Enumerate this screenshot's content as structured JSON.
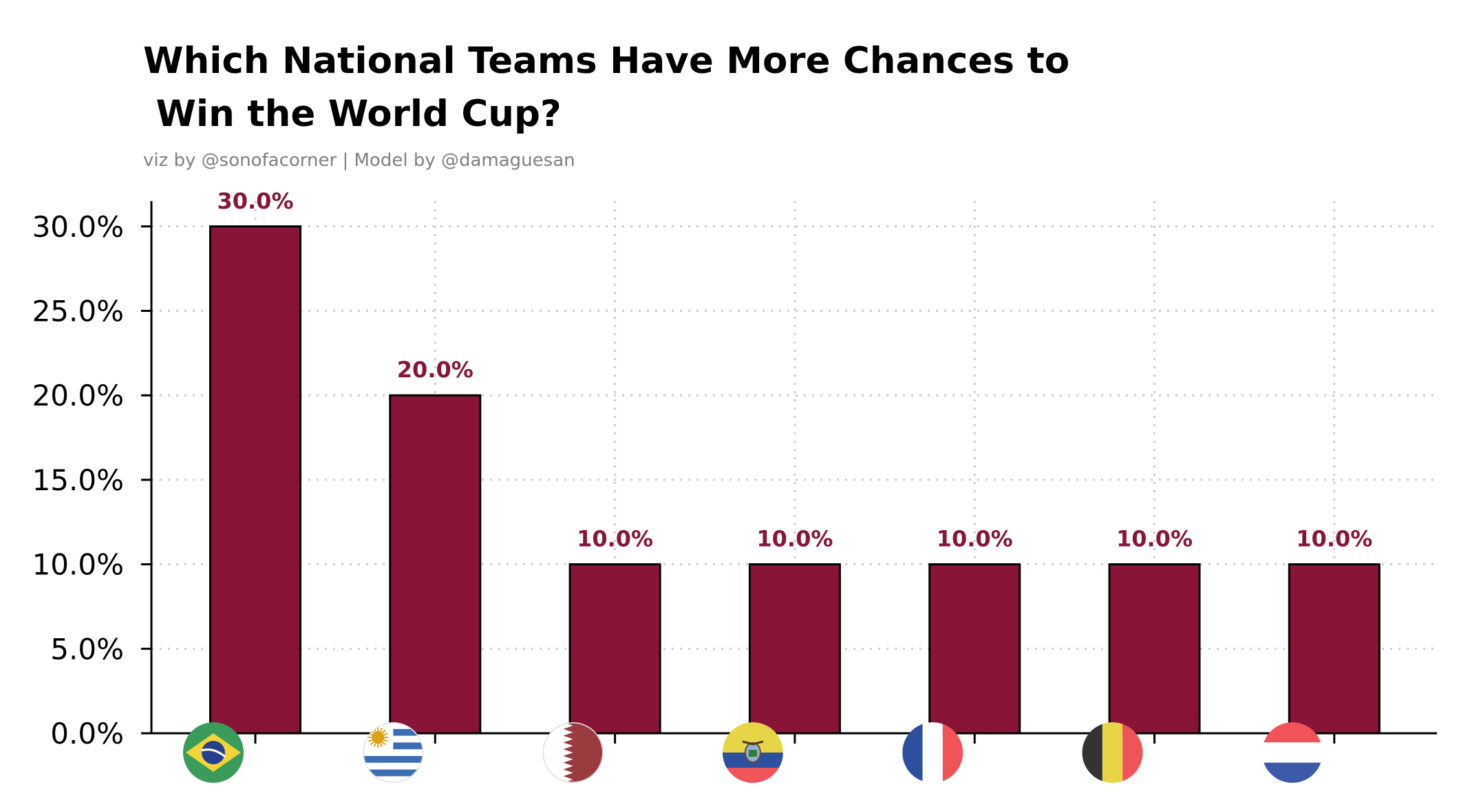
{
  "chart_data": {
    "type": "bar",
    "title": "Which National Teams Have More Chances to\n Win the World Cup?",
    "subtitle": "viz by @sonofacorner | Model by @damaguesan",
    "categories": [
      "Brazil",
      "Uruguay",
      "Qatar",
      "Ecuador",
      "France",
      "Belgium",
      "Netherlands"
    ],
    "values": [
      30.0,
      20.0,
      10.0,
      10.0,
      10.0,
      10.0,
      10.0
    ],
    "data_labels": [
      "30.0%",
      "20.0%",
      "10.0%",
      "10.0%",
      "10.0%",
      "10.0%",
      "10.0%"
    ],
    "xlabel": "",
    "ylabel": "",
    "ylim": [
      0,
      31.5
    ],
    "yticks": [
      0,
      5,
      10,
      15,
      20,
      25,
      30
    ],
    "ytick_labels": [
      "0.0%",
      "5.0%",
      "10.0%",
      "15.0%",
      "20.0%",
      "25.0%",
      "30.0%"
    ],
    "grid": true,
    "x_tick_labels_as": "flag icons",
    "colors": {
      "bar": "#881538",
      "bar_edge": "#000000",
      "data_label": "#881538",
      "grid": "#cccccc",
      "subtitle": "#808080"
    },
    "icons": [
      "brazil-flag-icon",
      "uruguay-flag-icon",
      "qatar-flag-icon",
      "ecuador-flag-icon",
      "france-flag-icon",
      "belgium-flag-icon",
      "netherlands-flag-icon"
    ]
  }
}
